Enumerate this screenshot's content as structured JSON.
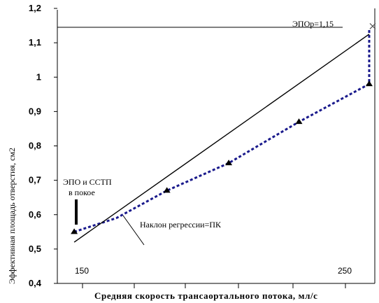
{
  "chart_data": {
    "type": "line",
    "xlabel": "Средняя скорость трансаортального потока, мл/с",
    "ylabel": "Эффективная площадь отверстия, см2",
    "ylim": [
      0.4,
      1.2
    ],
    "yticks": [
      0.4,
      0.5,
      0.6,
      0.7,
      0.8,
      0.9,
      1,
      1.1,
      1.2
    ],
    "ytick_labels": [
      "0,4",
      "0,5",
      "0,6",
      "0,7",
      "0,8",
      "0,9",
      "1",
      "1,1",
      "1,2"
    ],
    "xlim": [
      139,
      252
    ],
    "xticks": [
      150,
      250
    ],
    "xtick_labels": [
      "150",
      "250"
    ],
    "series": [
      {
        "style": "dotted-blue",
        "x": [
          145,
          160,
          178,
          200,
          225,
          250,
          250
        ],
        "y": [
          0.55,
          0.59,
          0.67,
          0.75,
          0.87,
          0.98,
          1.14
        ]
      },
      {
        "style": "solid-black",
        "x": [
          145,
          250
        ],
        "y": [
          0.52,
          1.125
        ]
      }
    ],
    "markers": {
      "triangles": [
        {
          "x": 145,
          "y": 0.55
        },
        {
          "x": 178,
          "y": 0.67
        },
        {
          "x": 200,
          "y": 0.75
        },
        {
          "x": 225,
          "y": 0.87
        },
        {
          "x": 250,
          "y": 0.98
        }
      ],
      "cross": {
        "x": 250,
        "y": 1.14
      }
    },
    "reference_line": {
      "y": 1.145,
      "label": "ЭПОр=1,15"
    },
    "annotations": {
      "rest_line1": "ЭПО и ССТП",
      "rest_line2": "в покое",
      "slope": "Наклон регрессии=ПК"
    },
    "grid": false
  }
}
